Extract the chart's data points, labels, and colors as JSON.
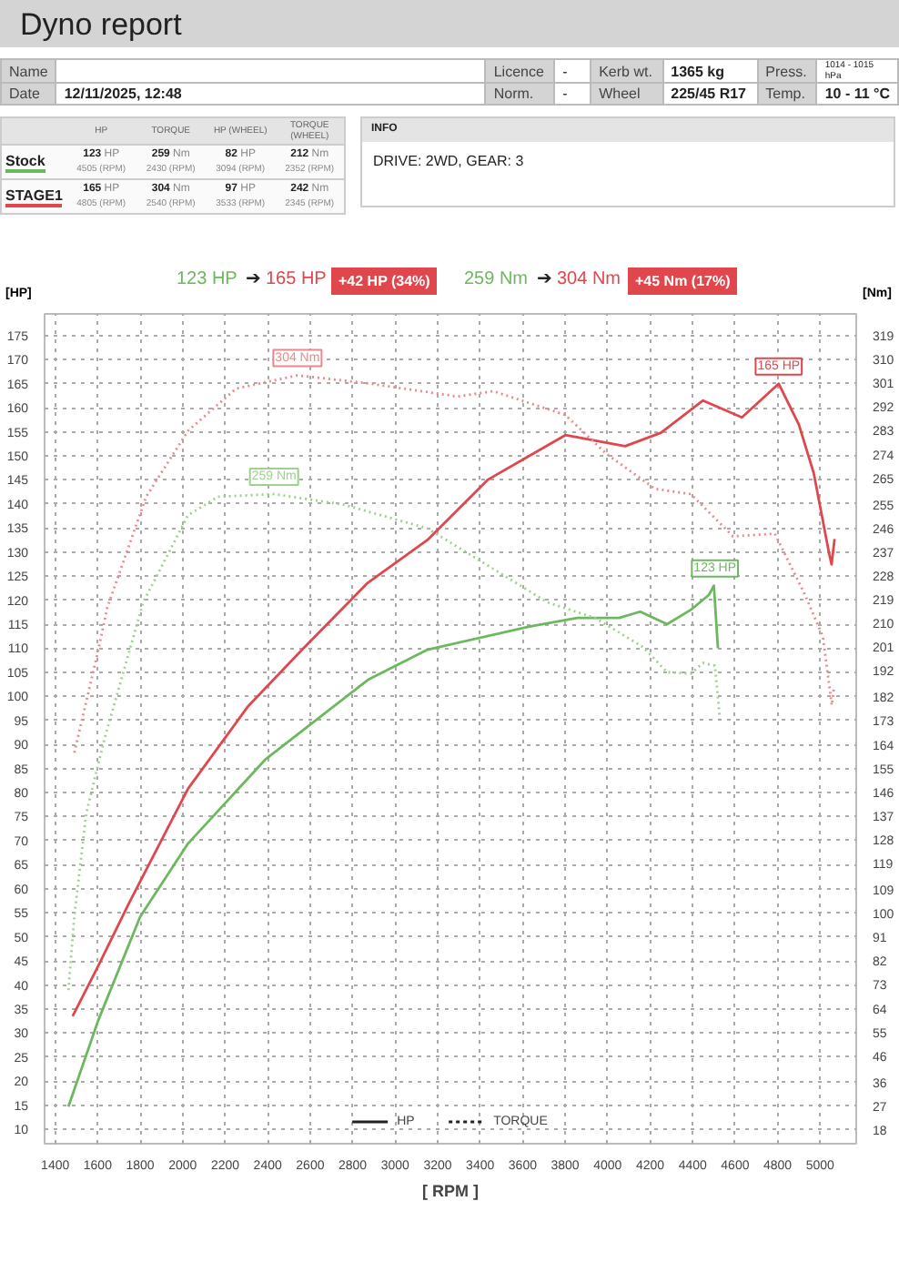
{
  "chart_data": {
    "type": "line",
    "title": "Dyno report",
    "xlabel": "[ RPM ]",
    "ylabel": "[HP]",
    "y2label": "[Nm]",
    "xlim": [
      1350,
      5170
    ],
    "xticks": [
      1400,
      1600,
      1800,
      2000,
      2200,
      2400,
      2600,
      2800,
      3000,
      3200,
      3400,
      3600,
      3800,
      4000,
      4200,
      4400,
      4600,
      4800,
      5000
    ],
    "ylim": [
      7,
      179.5
    ],
    "yticks": [
      10,
      15,
      20,
      25,
      30,
      35,
      40,
      45,
      50,
      55,
      60,
      65,
      70,
      75,
      80,
      85,
      90,
      95,
      100,
      105,
      110,
      115,
      120,
      125,
      130,
      135,
      140,
      145,
      150,
      155,
      160,
      165,
      170,
      175
    ],
    "y2lim": [
      12.8,
      327.3
    ],
    "y2ticks": [
      18,
      27,
      36,
      46,
      55,
      64,
      73,
      82,
      91,
      100,
      109,
      119,
      128,
      137,
      146,
      155,
      164,
      173,
      182,
      192,
      201,
      210,
      219,
      228,
      237,
      246,
      255,
      265,
      274,
      283,
      292,
      301,
      310,
      319
    ],
    "grid": true,
    "series": [
      {
        "color": "#6cb85e",
        "line_style": "solid",
        "x": [
          1462,
          1603,
          1800,
          2025,
          2392,
          2871,
          3152,
          3632,
          3857,
          4054,
          4153,
          4280,
          4392,
          4477,
          4500,
          4519
        ],
        "values": [
          14.7,
          32.7,
          54.2,
          69.4,
          87,
          103.4,
          109.7,
          114.5,
          116.3,
          116.3,
          117.6,
          115,
          118,
          121.1,
          123,
          110
        ]
      },
      {
        "color": "#e0474c",
        "line_style": "solid",
        "x": [
          1482,
          1603,
          1744,
          2025,
          2307,
          2560,
          2871,
          3152,
          3435,
          3801,
          4082,
          4251,
          4449,
          4632,
          4805,
          4900,
          4970,
          5041,
          5054,
          5068
        ],
        "values": [
          33.5,
          44,
          56.7,
          80.8,
          97.9,
          109.6,
          123.6,
          132.5,
          145,
          154.3,
          152,
          154.8,
          161.5,
          158,
          165,
          156.5,
          146.4,
          130,
          127.4,
          132.7
        ]
      },
      {
        "color": "#9fd08f",
        "line_style": "dotted",
        "axis": "y2",
        "x": [
          1462,
          1490,
          1546,
          1631,
          1814,
          2025,
          2166,
          2430,
          2758,
          3152,
          3435,
          3716,
          3942,
          4167,
          4280,
          4392,
          4449,
          4505,
          4528
        ],
        "values": [
          71,
          99,
          138,
          166,
          218,
          251,
          258,
          259,
          255,
          246,
          232,
          218,
          212,
          201,
          191.5,
          191,
          195,
          194,
          174
        ]
      },
      {
        "color": "#e88a8d",
        "line_style": "dotted",
        "axis": "y2",
        "x": [
          1490,
          1603,
          1645,
          1828,
          2025,
          2251,
          2540,
          2871,
          3293,
          3463,
          3801,
          3998,
          4223,
          4392,
          4590,
          4787,
          4928,
          5013,
          5055,
          5064
        ],
        "values": [
          161,
          200,
          216,
          258,
          283,
          299,
          304,
          301,
          296,
          298,
          289,
          274,
          261,
          259,
          243,
          244,
          221,
          205,
          179,
          185
        ]
      }
    ],
    "annotations": [
      "Name",
      "Licence",
      "-",
      "Kerb wt.",
      "1365 kg",
      "Press.",
      "1014 - 1015 hPa",
      "Date",
      "12/11/2025, 12:48",
      "Norm.",
      "-",
      "Wheel",
      "225/45 R17",
      "Temp.",
      "10 - 11 °C",
      "HP",
      "TORQUE",
      "HP (WHEEL)",
      "TORQUE (WHEEL)",
      "Stock",
      "123 HP",
      "4505 (RPM)",
      "259 Nm",
      "2430 (RPM)",
      "82 HP",
      "3094 (RPM)",
      "212 Nm",
      "2352 (RPM)",
      "STAGE1",
      "165 HP",
      "4805 (RPM)",
      "304 Nm",
      "2540 (RPM)",
      "97 HP",
      "3533 (RPM)",
      "242 Nm",
      "2345 (RPM)",
      "INFO",
      "DRIVE: 2WD,  GEAR: 3",
      "123 HP",
      "➔",
      "165 HP",
      "+42 HP  (34%)",
      "259 Nm",
      "➔",
      "304 Nm",
      "+45 Nm  (17%)",
      "HP",
      "TORQUE",
      "259 Nm",
      "304 Nm",
      {
        "text": "123 HP",
        "x": 4505,
        "y": 123
      },
      {
        "text": "165 HP",
        "x": 4805,
        "y": 165
      }
    ]
  }
}
